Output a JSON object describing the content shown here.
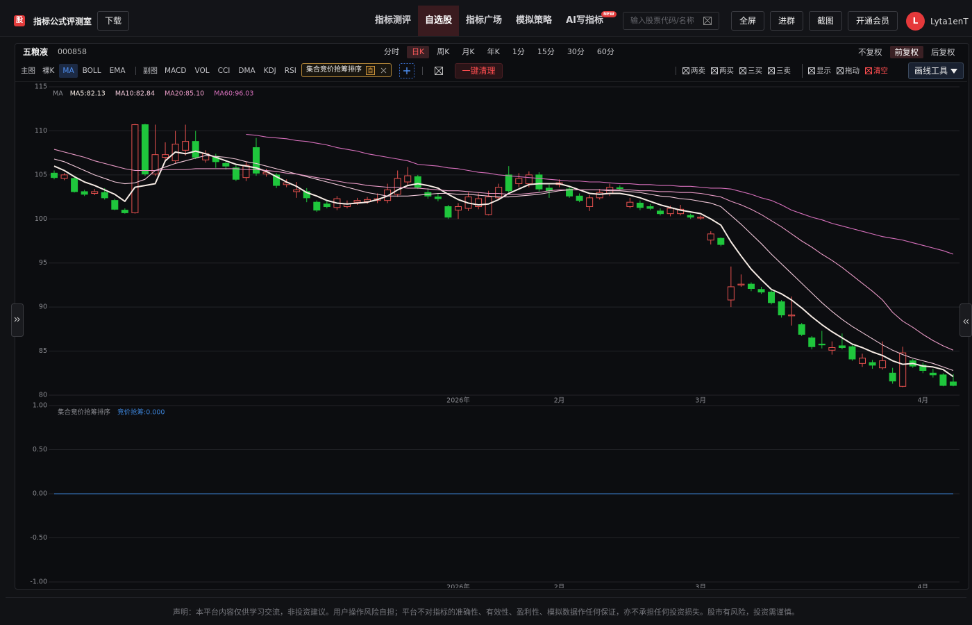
{
  "header": {
    "logo": "股",
    "title": "指标公式评测室",
    "download": "下载",
    "nav": [
      "指标测评",
      "自选股",
      "指标广场",
      "模拟策略",
      "AI写指标"
    ],
    "active_nav": 1,
    "new_badge": "NEW",
    "search_placeholder": "输入股票代码/名称",
    "buttons": [
      "全屏",
      "进群",
      "截图",
      "开通会员"
    ],
    "avatar": "L",
    "user": "Lyta1enT"
  },
  "toolbar": {
    "stock_name": "五粮液",
    "stock_code": "000858",
    "periods": [
      "分时",
      "日K",
      "周K",
      "月K",
      "年K",
      "1分",
      "15分",
      "30分",
      "60分"
    ],
    "active_period": 1,
    "adjust": [
      "不复权",
      "前复权",
      "后复权"
    ],
    "active_adjust": 1
  },
  "indicators": {
    "main_label": "主图",
    "main": [
      "裸K",
      "MA",
      "BOLL",
      "EMA"
    ],
    "active_main": 1,
    "sub_label": "副图",
    "sub": [
      "MACD",
      "VOL",
      "CCI",
      "DMA",
      "KDJ",
      "RSI"
    ],
    "chip": "集合竞价抢筹排序",
    "chip_tag": "自",
    "clear_all": "一键清理",
    "tools": [
      "两卖",
      "两买",
      "三买",
      "三卖",
      "显示",
      "拖动",
      "清空"
    ],
    "draw_tool": "画线工具"
  },
  "chart_data": [
    {
      "type": "candlestick",
      "legend_title": "MA",
      "up_color": "#e8514f",
      "down_color": "#1fc63c",
      "grid": true,
      "categories": [
        null,
        null,
        null,
        null,
        null,
        null,
        null,
        null,
        null,
        null,
        null,
        null,
        null,
        null,
        null,
        null,
        null,
        null,
        null,
        null,
        null,
        null,
        null,
        null,
        null,
        null,
        null,
        null,
        null,
        null,
        null,
        null,
        null,
        null,
        null,
        null,
        null,
        null,
        null,
        null,
        "2026年",
        null,
        null,
        null,
        null,
        null,
        null,
        null,
        null,
        null,
        "2月",
        null,
        null,
        null,
        null,
        null,
        null,
        null,
        null,
        null,
        null,
        null,
        null,
        null,
        "3月",
        null,
        null,
        null,
        null,
        null,
        null,
        null,
        null,
        null,
        null,
        null,
        null,
        null,
        null,
        null,
        null,
        null,
        null,
        null,
        null,
        null,
        "4月",
        null,
        null,
        null
      ],
      "open": [
        105.2,
        104.6,
        104.6,
        103.1,
        102.9,
        103.0,
        102.1,
        101.0,
        100.7,
        110.7,
        105.1,
        107.0,
        106.6,
        107.8,
        108.8,
        106.7,
        107.1,
        106.3,
        105.8,
        104.7,
        108.1,
        105.1,
        105.0,
        103.9,
        103.1,
        103.1,
        101.9,
        101.7,
        101.3,
        101.4,
        101.9,
        102.0,
        102.1,
        102.1,
        102.8,
        104.2,
        104.8,
        103.0,
        102.5,
        101.4,
        101.0,
        101.2,
        101.4,
        100.5,
        102.4,
        105.0,
        104.0,
        104.0,
        105.0,
        103.5,
        103.9,
        103.4,
        102.6,
        101.4,
        102.4,
        102.9,
        103.55,
        101.4,
        101.8,
        101.4,
        100.9,
        100.6,
        100.6,
        100.4,
        100.1,
        97.6,
        97.8,
        90.8,
        92.5,
        92.6,
        92.0,
        91.7,
        90.6,
        89.0,
        88.0,
        86.5,
        85.8,
        85.1,
        85.6,
        85.5,
        83.6,
        83.7,
        83.1,
        82.5,
        81.0,
        83.9,
        83.4,
        82.5,
        82.3,
        81.5
      ],
      "high": [
        105.5,
        105.2,
        104.8,
        103.3,
        103.4,
        103.5,
        102.3,
        101.2,
        110.8,
        110.8,
        110.7,
        108.7,
        110.0,
        110.7,
        110.0,
        107.8,
        107.4,
        106.6,
        106.1,
        106.5,
        109.2,
        105.7,
        105.2,
        104.5,
        104.2,
        103.5,
        102.1,
        102.0,
        102.6,
        102.1,
        102.4,
        102.5,
        102.9,
        104.0,
        105.5,
        105.9,
        105.0,
        103.5,
        102.9,
        101.6,
        101.8,
        103.0,
        102.9,
        103.2,
        104.0,
        106.0,
        105.2,
        105.4,
        105.3,
        103.9,
        104.5,
        103.6,
        102.9,
        102.7,
        103.4,
        104.0,
        103.8,
        102.4,
        102.1,
        101.7,
        101.2,
        101.5,
        101.6,
        100.6,
        100.4,
        98.6,
        97.9,
        94.6,
        93.7,
        92.8,
        92.3,
        91.9,
        90.8,
        91.2,
        88.2,
        86.7,
        87.3,
        86.1,
        87.0,
        85.7,
        84.7,
        84.0,
        86.1,
        83.1,
        85.5,
        84.1,
        83.7,
        83.0,
        82.5,
        82.4
      ],
      "low": [
        104.5,
        104.4,
        103.0,
        102.6,
        102.7,
        102.2,
        101.0,
        100.6,
        100.6,
        104.9,
        104.9,
        106.5,
        106.3,
        107.2,
        106.8,
        106.4,
        105.8,
        105.6,
        104.3,
        104.3,
        104.9,
        104.8,
        103.5,
        103.6,
        102.4,
        101.9,
        100.8,
        101.2,
        101.0,
        101.2,
        101.6,
        101.7,
        101.8,
        101.8,
        102.5,
        103.8,
        103.4,
        102.3,
        102.0,
        100.0,
        100.0,
        100.9,
        101.1,
        100.4,
        102.2,
        103.0,
        103.6,
        103.6,
        103.1,
        102.4,
        103.6,
        102.4,
        101.9,
        100.9,
        102.2,
        102.6,
        103.3,
        101.2,
        101.0,
        101.0,
        100.4,
        100.3,
        100.4,
        100.0,
        99.9,
        97.1,
        96.9,
        90.0,
        92.3,
        91.8,
        91.5,
        90.3,
        88.8,
        87.9,
        86.7,
        85.2,
        85.3,
        84.6,
        85.2,
        83.9,
        83.2,
        83.0,
        82.9,
        81.3,
        80.9,
        83.1,
        82.5,
        82.0,
        81.0,
        81.0
      ],
      "close": [
        104.7,
        105.0,
        103.1,
        102.8,
        103.1,
        102.4,
        101.1,
        100.7,
        110.7,
        105.1,
        107.3,
        107.3,
        108.5,
        108.8,
        107.0,
        107.4,
        106.5,
        106.0,
        104.5,
        106.1,
        105.2,
        105.3,
        103.8,
        104.1,
        103.3,
        102.4,
        101.0,
        101.4,
        102.3,
        101.7,
        102.1,
        102.2,
        102.3,
        103.3,
        104.6,
        104.9,
        103.6,
        102.6,
        102.3,
        100.2,
        101.4,
        102.5,
        102.3,
        102.5,
        103.6,
        103.2,
        104.6,
        105.0,
        103.4,
        103.2,
        104.1,
        102.6,
        102.1,
        102.4,
        103.0,
        103.6,
        103.45,
        101.9,
        101.3,
        101.2,
        100.6,
        101.2,
        101.1,
        100.2,
        100.2,
        98.3,
        97.1,
        92.3,
        92.6,
        92.1,
        91.7,
        90.5,
        89.1,
        89.1,
        86.9,
        85.5,
        85.7,
        85.4,
        85.4,
        84.1,
        84.2,
        83.4,
        83.9,
        81.6,
        84.8,
        83.3,
        82.8,
        82.3,
        81.1,
        81.1
      ],
      "series": [
        {
          "name": "MA5:82.13",
          "color": "#f6ebe4",
          "values": [
            106.0,
            105.5,
            104.8,
            104.2,
            103.8,
            103.3,
            102.8,
            102.0,
            103.6,
            103.8,
            104.0,
            106.6,
            107.6,
            107.4,
            107.7,
            107.4,
            107.0,
            106.6,
            106.2,
            106.0,
            105.8,
            105.4,
            104.8,
            104.2,
            103.7,
            103.0,
            102.6,
            102.1,
            101.8,
            101.7,
            101.8,
            101.9,
            102.2,
            102.6,
            103.3,
            103.8,
            104.0,
            103.8,
            103.5,
            102.8,
            102.2,
            101.8,
            101.6,
            101.7,
            102.2,
            102.9,
            103.4,
            103.9,
            104.0,
            104.0,
            104.0,
            103.7,
            103.3,
            102.9,
            102.8,
            102.9,
            102.9,
            102.7,
            102.4,
            102.0,
            101.6,
            101.3,
            101.0,
            100.8,
            100.6,
            100.0,
            99.3,
            97.4,
            95.8,
            94.3,
            93.1,
            92.0,
            91.5,
            90.8,
            89.9,
            88.9,
            88.0,
            87.2,
            86.5,
            85.8,
            85.4,
            84.9,
            84.5,
            83.9,
            83.5,
            83.6,
            83.3,
            83.2,
            82.9,
            82.1
          ]
        },
        {
          "name": "MA10:82.84",
          "color": "#f2c9da",
          "values": [
            106.8,
            106.5,
            106.0,
            105.5,
            105.0,
            104.6,
            104.2,
            104.0,
            104.1,
            104.5,
            105.5,
            105.9,
            106.3,
            106.6,
            106.9,
            107.2,
            107.1,
            107.0,
            106.8,
            106.5,
            106.3,
            106.0,
            105.7,
            105.4,
            105.1,
            104.8,
            104.5,
            104.2,
            103.9,
            103.6,
            103.3,
            103.0,
            102.8,
            102.6,
            102.6,
            102.6,
            102.7,
            102.8,
            102.9,
            102.9,
            102.8,
            102.8,
            102.7,
            102.6,
            102.5,
            102.5,
            102.6,
            102.7,
            102.8,
            103.0,
            103.2,
            103.3,
            103.3,
            103.3,
            103.3,
            103.2,
            103.2,
            103.1,
            103.0,
            102.8,
            102.6,
            102.5,
            102.3,
            102.2,
            102.0,
            101.8,
            101.4,
            100.4,
            99.4,
            98.3,
            97.2,
            96.0,
            94.9,
            93.8,
            92.7,
            91.6,
            90.5,
            89.5,
            88.6,
            87.8,
            87.1,
            86.4,
            85.7,
            85.1,
            84.6,
            84.2,
            83.9,
            83.6,
            83.2,
            82.8
          ]
        },
        {
          "name": "MA20:85.10",
          "color": "#e99ac6",
          "values": [
            107.9,
            107.6,
            107.3,
            107.0,
            106.6,
            106.3,
            106.0,
            105.7,
            105.5,
            105.5,
            105.5,
            105.6,
            105.6,
            105.6,
            105.7,
            105.7,
            105.7,
            105.7,
            105.7,
            105.6,
            105.6,
            105.5,
            105.4,
            105.2,
            105.1,
            104.9,
            104.7,
            104.5,
            104.3,
            104.1,
            104.0,
            103.8,
            103.7,
            103.6,
            103.6,
            103.5,
            103.5,
            103.4,
            103.3,
            103.2,
            103.2,
            103.1,
            103.0,
            102.9,
            102.9,
            102.8,
            102.8,
            102.9,
            103.0,
            103.2,
            103.3,
            103.3,
            103.3,
            103.3,
            103.3,
            103.3,
            103.3,
            103.3,
            103.2,
            103.2,
            103.1,
            103.1,
            103.0,
            103.0,
            102.9,
            102.7,
            102.5,
            102.0,
            101.6,
            101.1,
            100.5,
            99.8,
            99.1,
            98.3,
            97.5,
            96.8,
            96.0,
            95.3,
            94.5,
            93.6,
            92.7,
            91.8,
            90.8,
            89.4,
            88.4,
            87.7,
            86.9,
            86.2,
            85.6,
            85.1
          ]
        },
        {
          "name": "MA60:96.03",
          "color": "#d870bd",
          "values": [
            null,
            null,
            null,
            null,
            null,
            null,
            null,
            null,
            null,
            null,
            null,
            null,
            null,
            null,
            null,
            null,
            null,
            null,
            null,
            109.6,
            109.5,
            109.3,
            109.2,
            109.1,
            108.9,
            108.8,
            108.6,
            108.4,
            108.1,
            107.9,
            107.7,
            107.4,
            107.2,
            107.0,
            106.8,
            106.6,
            106.2,
            106.1,
            106.0,
            105.8,
            105.7,
            105.5,
            105.3,
            105.2,
            105.0,
            104.9,
            104.8,
            104.7,
            104.6,
            104.5,
            104.4,
            104.3,
            104.3,
            104.2,
            104.2,
            104.1,
            104.0,
            104.0,
            103.9,
            103.9,
            103.8,
            103.8,
            103.7,
            103.7,
            103.6,
            103.5,
            103.5,
            103.4,
            103.1,
            102.8,
            102.4,
            102.1,
            101.6,
            101.0,
            100.6,
            100.2,
            99.9,
            99.5,
            99.2,
            98.9,
            98.6,
            98.3,
            98.0,
            97.8,
            97.6,
            97.3,
            97.0,
            96.7,
            96.4,
            96.0
          ]
        }
      ],
      "ylim": [
        80,
        115
      ],
      "yticks": [
        80,
        85,
        90,
        95,
        100,
        105,
        110,
        115
      ]
    },
    {
      "type": "line",
      "title": "集合竞价抢筹排序",
      "grid": true,
      "categories": [
        null,
        null,
        null,
        null,
        null,
        null,
        null,
        null,
        null,
        null,
        null,
        null,
        null,
        null,
        null,
        null,
        null,
        null,
        null,
        null,
        null,
        null,
        null,
        null,
        null,
        null,
        null,
        null,
        null,
        null,
        null,
        null,
        null,
        null,
        null,
        null,
        null,
        null,
        null,
        null,
        "2026年",
        null,
        null,
        null,
        null,
        null,
        null,
        null,
        null,
        null,
        "2月",
        null,
        null,
        null,
        null,
        null,
        null,
        null,
        null,
        null,
        null,
        null,
        null,
        null,
        "3月",
        null,
        null,
        null,
        null,
        null,
        null,
        null,
        null,
        null,
        null,
        null,
        null,
        null,
        null,
        null,
        null,
        null,
        null,
        null,
        null,
        null,
        "4月",
        null,
        null,
        null
      ],
      "series": [
        {
          "name": "竞价抢筹:0.000",
          "color": "#3b82d6",
          "values": [
            0,
            0,
            0,
            0,
            0,
            0,
            0,
            0,
            0,
            0,
            0,
            0,
            0,
            0,
            0,
            0,
            0,
            0,
            0,
            0,
            0,
            0,
            0,
            0,
            0,
            0,
            0,
            0,
            0,
            0,
            0,
            0,
            0,
            0,
            0,
            0,
            0,
            0,
            0,
            0,
            0,
            0,
            0,
            0,
            0,
            0,
            0,
            0,
            0,
            0,
            0,
            0,
            0,
            0,
            0,
            0,
            0,
            0,
            0,
            0,
            0,
            0,
            0,
            0,
            0,
            0,
            0,
            0,
            0,
            0,
            0,
            0,
            0,
            0,
            0,
            0,
            0,
            0,
            0,
            0,
            0,
            0,
            0,
            0,
            0,
            0,
            0,
            0,
            0,
            0
          ]
        }
      ],
      "ylim": [
        -1,
        1
      ],
      "yticks": [
        {
          "value": 1,
          "label": "1.00"
        },
        {
          "value": 0.5,
          "label": "0.50"
        },
        {
          "value": 0,
          "label": "0.00"
        },
        {
          "value": -0.5,
          "label": "-0.50"
        },
        {
          "value": -1,
          "label": "-1.00"
        }
      ]
    }
  ],
  "footer": "声明：本平台内容仅供学习交流，非投资建议。用户操作风险自担；平台不对指标的准确性、有效性、盈利性、模拟数据作任何保证，亦不承担任何投资损失。股市有风险，投资需谨慎。"
}
